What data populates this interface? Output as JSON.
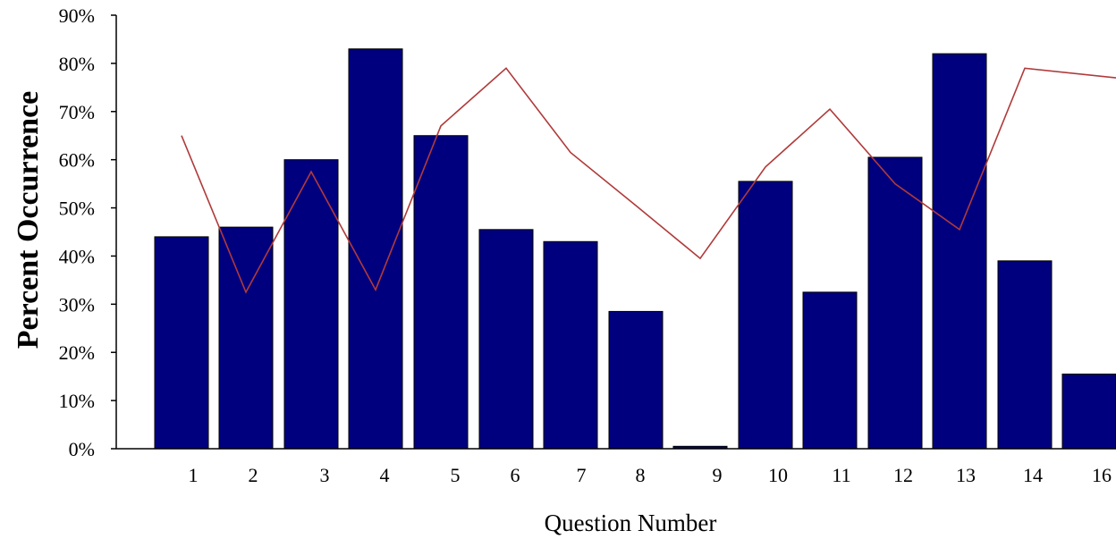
{
  "chart_data": {
    "type": "bar",
    "title": "",
    "xlabel": "Question Number",
    "ylabel": "Percent Occurrence",
    "categories": [
      "1",
      "2",
      "3",
      "4",
      "5",
      "6",
      "7",
      "8",
      "9",
      "10",
      "11",
      "12",
      "13",
      "14",
      "16"
    ],
    "series": [
      {
        "type": "bar",
        "values": [
          44,
          46,
          60,
          83,
          65,
          45.5,
          43,
          28.5,
          0.5,
          55.5,
          32.5,
          60.5,
          82,
          39,
          15.5
        ],
        "color": "#00007e"
      },
      {
        "type": "line",
        "values": [
          65,
          32.5,
          57.5,
          33,
          67,
          79,
          61.5,
          50.5,
          39.5,
          58.5,
          70.5,
          55,
          45.5,
          79,
          77
        ],
        "color": "#b03a3a"
      }
    ],
    "ylim": [
      0,
      90
    ],
    "yticks": [
      "0%",
      "10%",
      "20%",
      "30%",
      "40%",
      "50%",
      "60%",
      "70%",
      "80%",
      "90%"
    ],
    "grid": false,
    "legend": "none"
  }
}
